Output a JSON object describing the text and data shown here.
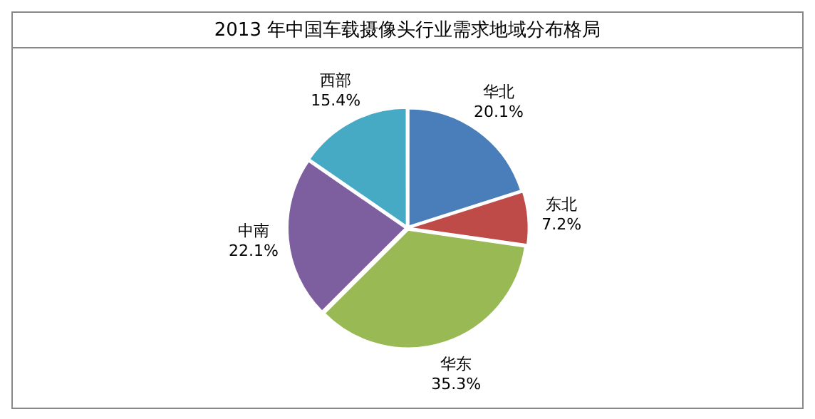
{
  "chart_data": {
    "type": "pie",
    "title": "2013 年中国车载摄像头行业需求地域分布格局",
    "categories": [
      "华北",
      "东北",
      "华东",
      "中南",
      "西部"
    ],
    "values": [
      20.1,
      7.2,
      35.3,
      22.1,
      15.4
    ],
    "colors": [
      "#4a7ebb",
      "#be4b48",
      "#98b954",
      "#7d5fa0",
      "#46aac5"
    ],
    "value_labels": [
      "20.1%",
      "7.2%",
      "35.3%",
      "22.1%",
      "15.4%"
    ],
    "legend": false
  }
}
